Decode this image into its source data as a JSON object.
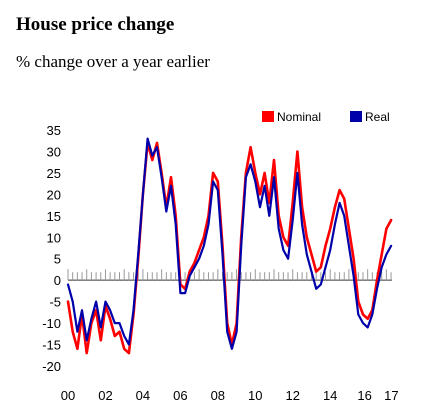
{
  "title": "House price change",
  "subtitle": "% change over a year earlier",
  "chart_data": {
    "type": "line",
    "title": "House price change",
    "subtitle": "% change over a year earlier",
    "xlabel": "",
    "ylabel": "",
    "x_tick_labels": [
      "00",
      "02",
      "04",
      "06",
      "08",
      "10",
      "12",
      "14",
      "16",
      "17"
    ],
    "x_tick_values": [
      2000,
      2002,
      2004,
      2006,
      2008,
      2010,
      2012,
      2014,
      2016,
      2017
    ],
    "y_ticks": [
      35,
      30,
      25,
      20,
      15,
      10,
      5,
      0,
      -5,
      -10,
      -15,
      -20
    ],
    "xlim": [
      2000,
      2017.3
    ],
    "ylim": [
      -20,
      35
    ],
    "grid": false,
    "legend_position": "top-right",
    "series": [
      {
        "name": "Nominal",
        "color": "#ff0000",
        "x": [
          2000.0,
          2000.25,
          2000.5,
          2000.75,
          2001.0,
          2001.25,
          2001.5,
          2001.75,
          2002.0,
          2002.25,
          2002.5,
          2002.75,
          2003.0,
          2003.25,
          2003.5,
          2003.75,
          2004.0,
          2004.25,
          2004.5,
          2004.75,
          2005.0,
          2005.25,
          2005.5,
          2005.75,
          2006.0,
          2006.25,
          2006.5,
          2006.75,
          2007.0,
          2007.25,
          2007.5,
          2007.75,
          2008.0,
          2008.25,
          2008.5,
          2008.75,
          2009.0,
          2009.25,
          2009.5,
          2009.75,
          2010.0,
          2010.25,
          2010.5,
          2010.75,
          2011.0,
          2011.25,
          2011.5,
          2011.75,
          2012.0,
          2012.25,
          2012.5,
          2012.75,
          2013.0,
          2013.25,
          2013.5,
          2013.75,
          2014.0,
          2014.25,
          2014.5,
          2014.75,
          2015.0,
          2015.25,
          2015.5,
          2015.75,
          2016.0,
          2016.25,
          2016.5,
          2016.75,
          2017.0,
          2017.25
        ],
        "y": [
          -5,
          -12,
          -16,
          -8,
          -17,
          -10,
          -7,
          -14,
          -6,
          -9,
          -13,
          -12,
          -16,
          -17,
          -8,
          5,
          20,
          32,
          28,
          32,
          25,
          17,
          24,
          15,
          -1,
          -2,
          2,
          4,
          7,
          10,
          15,
          25,
          23,
          8,
          -10,
          -15,
          -10,
          10,
          25,
          31,
          25,
          20,
          25,
          18,
          28,
          15,
          10,
          8,
          18,
          30,
          17,
          10,
          6,
          2,
          3,
          8,
          12,
          17,
          21,
          19,
          12,
          5,
          -5,
          -8,
          -9,
          -7,
          0,
          6,
          12,
          14
        ],
        "values": [
          -5,
          -12,
          -16,
          -8,
          -17,
          -10,
          -7,
          -14,
          -6,
          -9,
          -13,
          -12,
          -16,
          -17,
          -8,
          5,
          20,
          32,
          28,
          32,
          25,
          17,
          24,
          15,
          -1,
          -2,
          2,
          4,
          7,
          10,
          15,
          25,
          23,
          8,
          -10,
          -15,
          -10,
          10,
          25,
          31,
          25,
          20,
          25,
          18,
          28,
          15,
          10,
          8,
          18,
          30,
          17,
          10,
          6,
          2,
          3,
          8,
          12,
          17,
          21,
          19,
          12,
          5,
          -5,
          -8,
          -9,
          -7,
          0,
          6,
          12,
          14
        ]
      },
      {
        "name": "Real",
        "color": "#0000aa",
        "x": [
          2000.0,
          2000.25,
          2000.5,
          2000.75,
          2001.0,
          2001.25,
          2001.5,
          2001.75,
          2002.0,
          2002.25,
          2002.5,
          2002.75,
          2003.0,
          2003.25,
          2003.5,
          2003.75,
          2004.0,
          2004.25,
          2004.5,
          2004.75,
          2005.0,
          2005.25,
          2005.5,
          2005.75,
          2006.0,
          2006.25,
          2006.5,
          2006.75,
          2007.0,
          2007.25,
          2007.5,
          2007.75,
          2008.0,
          2008.25,
          2008.5,
          2008.75,
          2009.0,
          2009.25,
          2009.5,
          2009.75,
          2010.0,
          2010.25,
          2010.5,
          2010.75,
          2011.0,
          2011.25,
          2011.5,
          2011.75,
          2012.0,
          2012.25,
          2012.5,
          2012.75,
          2013.0,
          2013.25,
          2013.5,
          2013.75,
          2014.0,
          2014.25,
          2014.5,
          2014.75,
          2015.0,
          2015.25,
          2015.5,
          2015.75,
          2016.0,
          2016.25,
          2016.5,
          2016.75,
          2017.0,
          2017.25
        ],
        "y": [
          -1,
          -5,
          -12,
          -7,
          -14,
          -9,
          -5,
          -11,
          -5,
          -7,
          -10,
          -10,
          -13,
          -15,
          -7,
          6,
          20,
          33,
          29,
          31,
          24,
          16,
          22,
          13,
          -3,
          -3,
          1,
          3,
          5,
          8,
          13,
          23,
          21,
          6,
          -12,
          -16,
          -12,
          8,
          24,
          27,
          23,
          17,
          22,
          15,
          24,
          12,
          7,
          5,
          14,
          25,
          13,
          6,
          2,
          -2,
          -1,
          3,
          7,
          13,
          18,
          15,
          8,
          1,
          -8,
          -10,
          -11,
          -8,
          -2,
          3,
          6,
          8
        ],
        "values": [
          -1,
          -5,
          -12,
          -7,
          -14,
          -9,
          -5,
          -11,
          -5,
          -7,
          -10,
          -10,
          -13,
          -15,
          -7,
          6,
          20,
          33,
          29,
          31,
          24,
          16,
          22,
          13,
          -3,
          -3,
          1,
          3,
          5,
          8,
          13,
          23,
          21,
          6,
          -12,
          -16,
          -12,
          8,
          24,
          27,
          23,
          17,
          22,
          15,
          24,
          12,
          7,
          5,
          14,
          25,
          13,
          6,
          2,
          -2,
          -1,
          3,
          7,
          13,
          18,
          15,
          8,
          1,
          -8,
          -10,
          -11,
          -8,
          -2,
          3,
          6,
          8
        ]
      }
    ]
  }
}
